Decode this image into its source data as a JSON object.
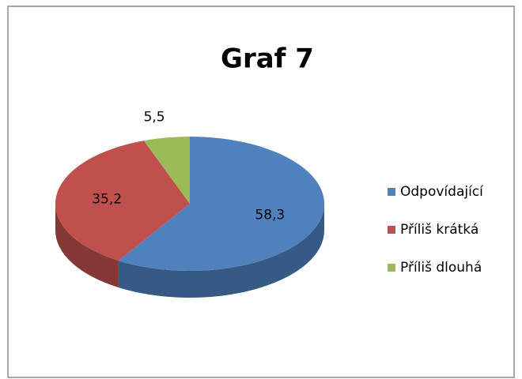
{
  "chart_data": {
    "type": "pie",
    "title": "Graf 7",
    "categories": [
      "Odpovídající",
      "Příliš krátká",
      "Příliš dlouhá"
    ],
    "values": [
      58.3,
      35.2,
      5.5
    ],
    "value_labels": [
      "58,3",
      "35,2",
      "5,5"
    ],
    "colors": [
      "#4f81bd",
      "#c0504d",
      "#9bbb59"
    ],
    "legend": "right"
  }
}
